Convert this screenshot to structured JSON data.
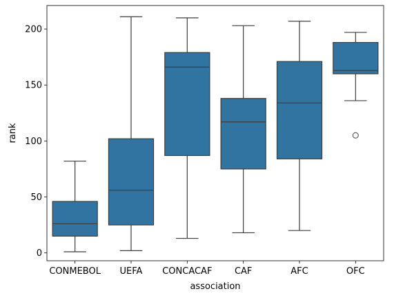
{
  "chart_data": {
    "type": "box",
    "title": "",
    "xlabel": "association",
    "ylabel": "rank",
    "ylim": [
      -7,
      221
    ],
    "yticks": [
      0,
      50,
      100,
      150,
      200
    ],
    "grid": false,
    "legend": "none",
    "box_color": "#3274a1",
    "line_color": "#3d3d3d",
    "categories": [
      "CONMEBOL",
      "UEFA",
      "CONCACAF",
      "CAF",
      "AFC",
      "OFC"
    ],
    "boxes": [
      {
        "category": "CONMEBOL",
        "whisker_low": 1,
        "q1": 15,
        "median": 26,
        "q3": 46,
        "whisker_high": 82,
        "outliers": []
      },
      {
        "category": "UEFA",
        "whisker_low": 2,
        "q1": 25,
        "median": 56,
        "q3": 102,
        "whisker_high": 211,
        "outliers": []
      },
      {
        "category": "CONCACAF",
        "whisker_low": 13,
        "q1": 87,
        "median": 166,
        "q3": 179,
        "whisker_high": 210,
        "outliers": []
      },
      {
        "category": "CAF",
        "whisker_low": 18,
        "q1": 75,
        "median": 117,
        "q3": 138,
        "whisker_high": 203,
        "outliers": []
      },
      {
        "category": "AFC",
        "whisker_low": 20,
        "q1": 84,
        "median": 134,
        "q3": 171,
        "whisker_high": 207,
        "outliers": []
      },
      {
        "category": "OFC",
        "whisker_low": 136,
        "q1": 160,
        "median": 163,
        "q3": 188,
        "whisker_high": 197,
        "outliers": [
          105
        ]
      }
    ]
  }
}
